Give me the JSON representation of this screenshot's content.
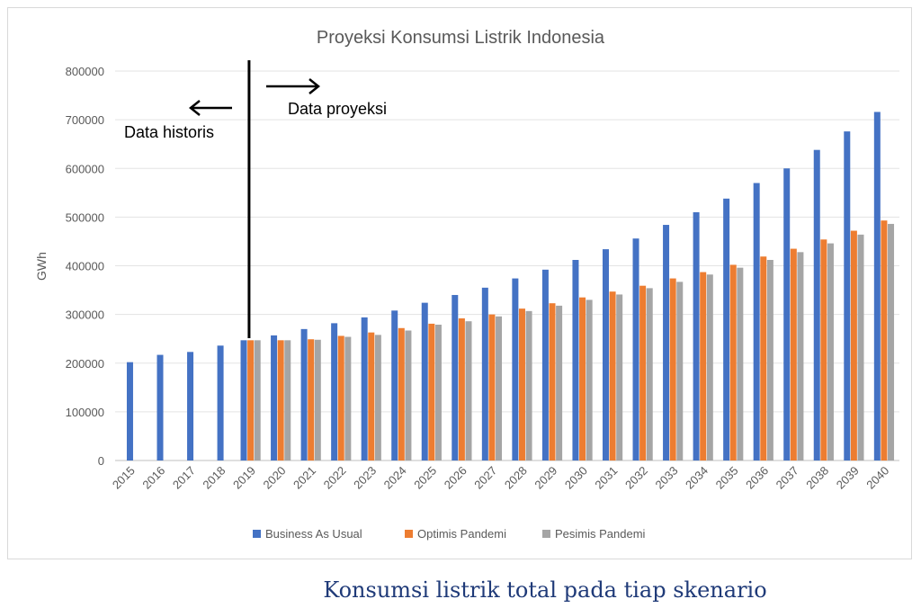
{
  "chart_data": {
    "type": "bar",
    "title": "Proyeksi Konsumsi Listrik Indonesia",
    "xlabel": "",
    "ylabel": "GWh",
    "ylim": [
      0,
      800000
    ],
    "yticks": [
      "0",
      "100000",
      "200000",
      "300000",
      "400000",
      "500000",
      "600000",
      "700000",
      "800000"
    ],
    "grid": true,
    "legend_position": "bottom",
    "categories": [
      "2015",
      "2016",
      "2017",
      "2018",
      "2019",
      "2020",
      "2021",
      "2022",
      "2023",
      "2024",
      "2025",
      "2026",
      "2027",
      "2028",
      "2029",
      "2030",
      "2031",
      "2032",
      "2033",
      "2034",
      "2035",
      "2036",
      "2037",
      "2038",
      "2039",
      "2040"
    ],
    "series": [
      {
        "name": "Business As Usual",
        "color": "#4472c4",
        "values": [
          202000,
          217000,
          223000,
          236000,
          247000,
          257000,
          270000,
          282000,
          294000,
          308000,
          324000,
          340000,
          355000,
          374000,
          392000,
          412000,
          434000,
          456000,
          484000,
          510000,
          538000,
          570000,
          600000,
          638000,
          676000,
          716000
        ]
      },
      {
        "name": "Optimis Pandemi",
        "color": "#ed7d31",
        "values": [
          null,
          null,
          null,
          null,
          247000,
          247000,
          249000,
          256000,
          263000,
          272000,
          281000,
          292000,
          300000,
          312000,
          323000,
          335000,
          347000,
          359000,
          374000,
          387000,
          402000,
          419000,
          435000,
          454000,
          472000,
          493000
        ]
      },
      {
        "name": "Pesimis Pandemi",
        "color": "#a5a5a5",
        "values": [
          null,
          null,
          null,
          null,
          247000,
          247000,
          248000,
          254000,
          258000,
          267000,
          279000,
          286000,
          296000,
          307000,
          318000,
          330000,
          341000,
          354000,
          367000,
          382000,
          396000,
          412000,
          428000,
          446000,
          464000,
          486000
        ]
      }
    ],
    "annotations": {
      "left_label": "Data historis",
      "right_label": "Data proyeksi",
      "divider_category": "2019"
    }
  },
  "caption": "Konsumsi listrik total pada tiap skenario"
}
